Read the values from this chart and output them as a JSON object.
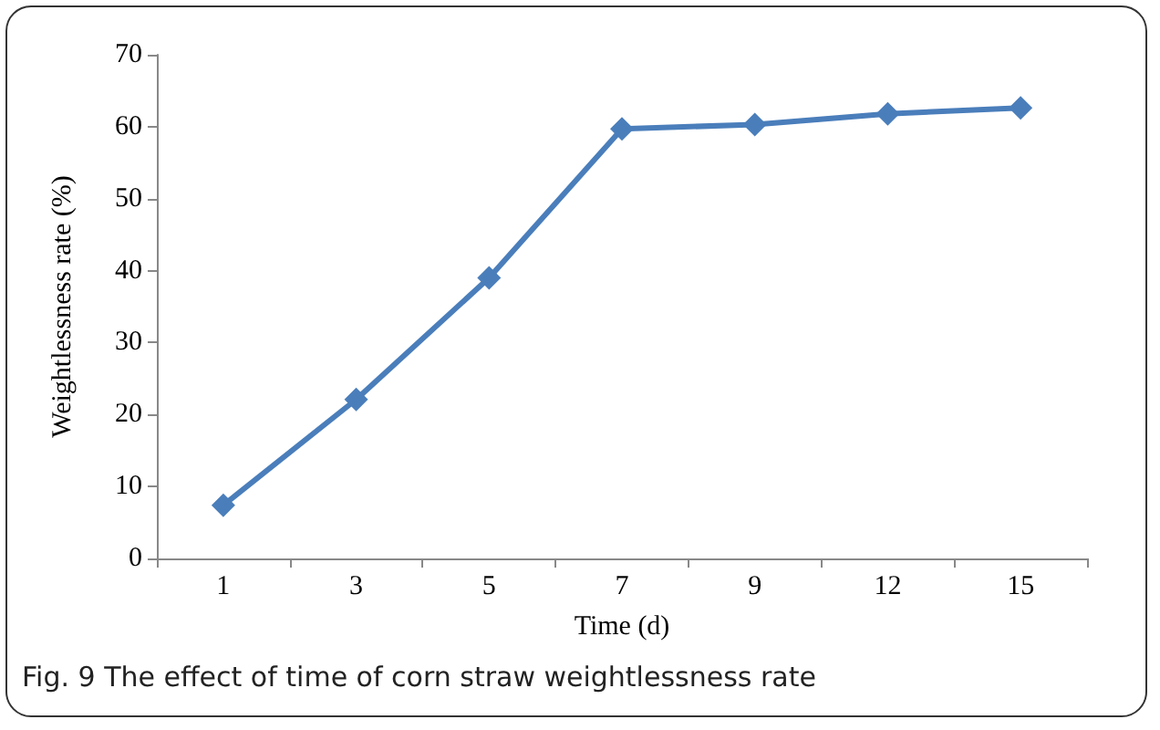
{
  "chart_data": {
    "type": "line",
    "xlabel": "Time (d)",
    "ylabel": "Weightlessness rate (%)",
    "categories": [
      "1",
      "3",
      "5",
      "7",
      "9",
      "12",
      "15"
    ],
    "series": [
      {
        "color": "#4a7ebb",
        "values": [
          7.4,
          22.1,
          39,
          59.7,
          60.3,
          61.8,
          62.6
        ]
      }
    ],
    "ylim": [
      0,
      70
    ],
    "yticks": [
      0,
      10,
      20,
      30,
      40,
      50,
      60,
      70
    ],
    "grid": false,
    "marker": "diamond",
    "line_style": "solid",
    "annotations": [
      "Fig. 9 The effect of time of corn straw weightlessness rate"
    ]
  }
}
